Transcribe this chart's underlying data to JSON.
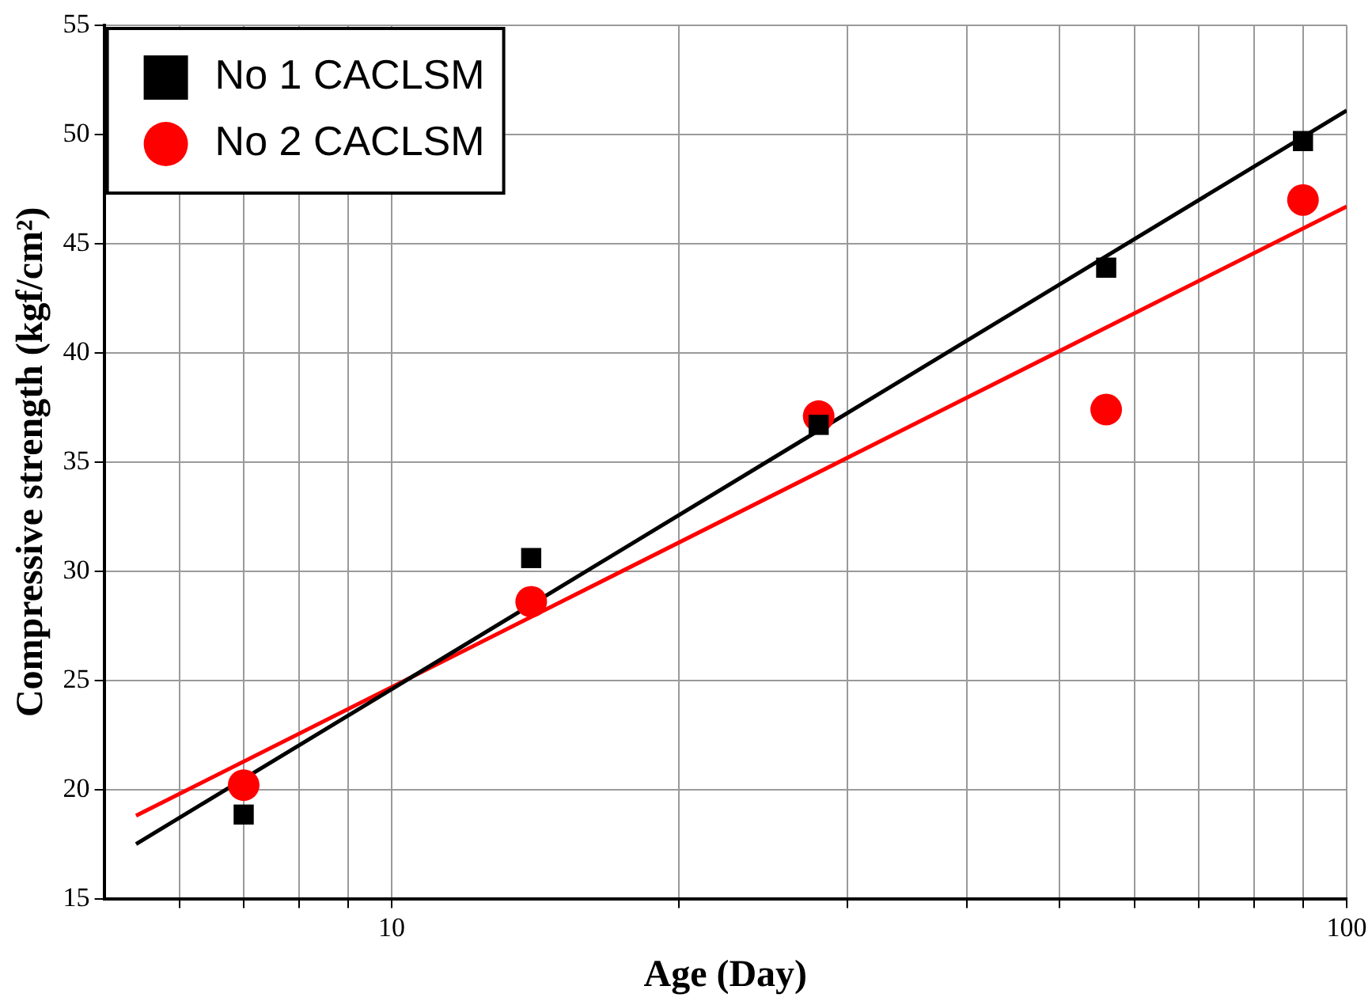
{
  "chart_data": {
    "type": "scatter",
    "xlabel": "Age (Day)",
    "ylabel": "Compressive strength (kgf/cm²)",
    "log": "x",
    "xlim": [
      5,
      100
    ],
    "ylim": [
      15,
      55
    ],
    "xticks": [
      {
        "value": 6,
        "label": null
      },
      {
        "value": 7,
        "label": null
      },
      {
        "value": 8,
        "label": null
      },
      {
        "value": 9,
        "label": null
      },
      10,
      {
        "value": 20,
        "label": null
      },
      {
        "value": 30,
        "label": null
      },
      {
        "value": 40,
        "label": null
      },
      {
        "value": 50,
        "label": null
      },
      {
        "value": 60,
        "label": null
      },
      {
        "value": 70,
        "label": null
      },
      {
        "value": 80,
        "label": null
      },
      {
        "value": 90,
        "label": null
      },
      100
    ],
    "yticks": [
      15,
      20,
      25,
      30,
      35,
      40,
      45,
      50,
      55
    ],
    "grid": true,
    "legend": "top left",
    "series": [
      {
        "name": "No 1 CACLSM",
        "marker": "square",
        "color": "#000000",
        "x": [
          7,
          14,
          28,
          56,
          90
        ],
        "values": [
          18.85,
          30.6,
          36.7,
          43.9,
          49.7
        ]
      },
      {
        "name": "No 2 CACLSM",
        "marker": "circle",
        "color": "#ff0000",
        "x": [
          7,
          14,
          28,
          56,
          90
        ],
        "values": [
          20.2,
          28.6,
          37.1,
          37.4,
          47.0
        ]
      },
      {
        "type": "line",
        "marker": "none",
        "color": "#000000",
        "x": [
          5.4,
          100
        ],
        "values": [
          17.5,
          51.1
        ]
      },
      {
        "type": "line",
        "marker": "none",
        "color": "#ff0000",
        "x": [
          5.4,
          100
        ],
        "values": [
          18.8,
          46.7
        ]
      }
    ]
  }
}
